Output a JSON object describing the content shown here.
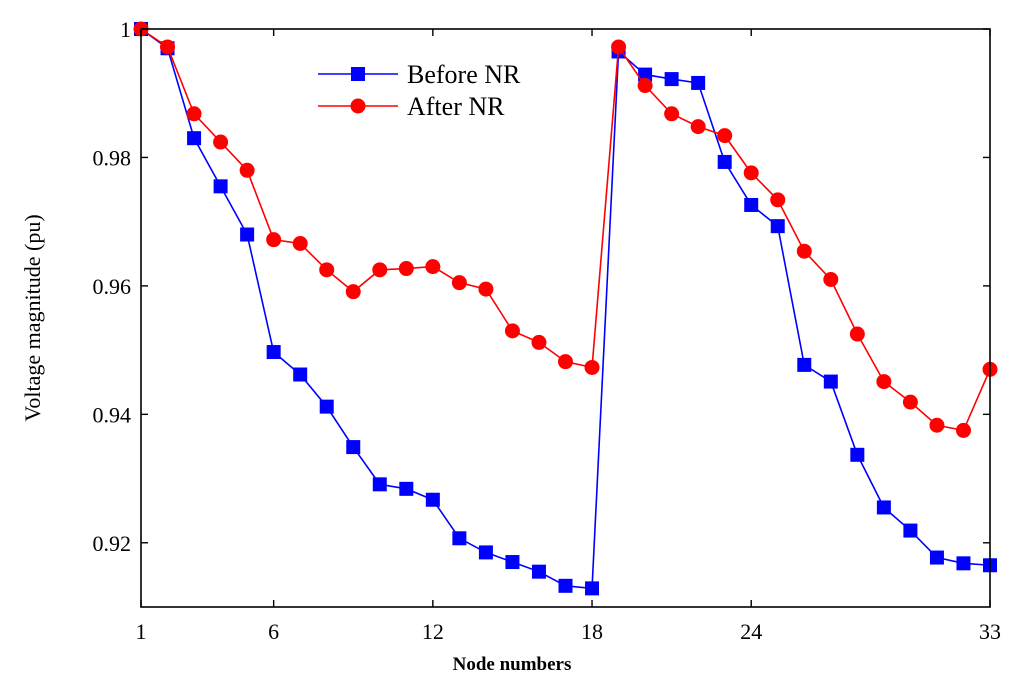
{
  "chart_data": {
    "type": "line",
    "title": "",
    "xlabel": "Node numbers",
    "ylabel": "Voltage magnitude (pu)",
    "xlim": [
      1,
      33
    ],
    "ylim": [
      0.91,
      1.0
    ],
    "xticks": [
      1,
      6,
      12,
      18,
      24,
      33
    ],
    "yticks": [
      0.92,
      0.94,
      0.96,
      0.98,
      1.0
    ],
    "xtick_labels": [
      "1",
      "6",
      "12",
      "18",
      "24",
      "33"
    ],
    "ytick_labels": [
      "0.92",
      "0.94",
      "0.96",
      "0.98",
      "1"
    ],
    "legend_position": "top-center",
    "grid": false,
    "x": [
      1,
      2,
      3,
      4,
      5,
      6,
      7,
      8,
      9,
      10,
      11,
      12,
      13,
      14,
      15,
      16,
      17,
      18,
      19,
      20,
      21,
      22,
      23,
      24,
      25,
      26,
      27,
      28,
      29,
      30,
      31,
      32,
      33
    ],
    "series": [
      {
        "name": "Before NR",
        "color": "#0000ff",
        "marker": "square",
        "values": [
          1.0,
          0.997,
          0.983,
          0.9755,
          0.968,
          0.9497,
          0.9462,
          0.9412,
          0.9349,
          0.9291,
          0.9284,
          0.9267,
          0.9207,
          0.9185,
          0.917,
          0.9155,
          0.9133,
          0.9129,
          0.9965,
          0.9929,
          0.9922,
          0.9916,
          0.9793,
          0.9726,
          0.9693,
          0.9477,
          0.9451,
          0.9337,
          0.9255,
          0.9219,
          0.9177,
          0.9168,
          0.9165
        ]
      },
      {
        "name": "After NR",
        "color": "#ff0000",
        "marker": "circle",
        "values": [
          1.0,
          0.9972,
          0.9868,
          0.9824,
          0.978,
          0.9672,
          0.9666,
          0.9625,
          0.9591,
          0.9625,
          0.9627,
          0.963,
          0.9605,
          0.9595,
          0.953,
          0.9512,
          0.9482,
          0.9473,
          0.9972,
          0.9912,
          0.9868,
          0.9848,
          0.9834,
          0.9776,
          0.9734,
          0.9654,
          0.961,
          0.9525,
          0.9451,
          0.9419,
          0.9383,
          0.9375,
          0.947
        ]
      }
    ]
  }
}
